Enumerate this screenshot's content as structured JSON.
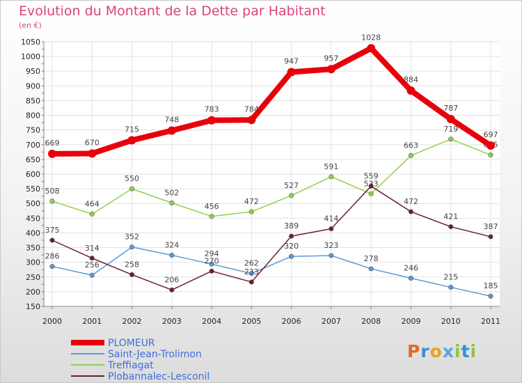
{
  "title": "Evolution du Montant de la Dette par Habitant",
  "unit": "(en €)",
  "logo": "Proxiti",
  "chart_data": {
    "type": "line",
    "title": "Evolution du Montant de la Dette par Habitant",
    "ylabel": "(en €)",
    "xlabel": "",
    "ylim": [
      150,
      1050
    ],
    "yticks": [
      150,
      200,
      250,
      300,
      350,
      400,
      450,
      500,
      550,
      600,
      650,
      700,
      750,
      800,
      850,
      900,
      950,
      1000,
      1050
    ],
    "grid": true,
    "legend": "bottom-left",
    "categories": [
      "2000",
      "2001",
      "2002",
      "2003",
      "2004",
      "2005",
      "2006",
      "2007",
      "2008",
      "2009",
      "2010",
      "2011"
    ],
    "series": [
      {
        "name": "PLOMEUR",
        "color": "#e8000b",
        "values": [
          669,
          670,
          715,
          748,
          783,
          784,
          947,
          957,
          1028,
          884,
          787,
          697
        ]
      },
      {
        "name": "Saint-Jean-Trolimon",
        "color": "#5b9bd5",
        "values": [
          286,
          256,
          352,
          324,
          294,
          262,
          320,
          323,
          278,
          246,
          215,
          185
        ]
      },
      {
        "name": "Treffiagat",
        "color": "#8fd14f",
        "values": [
          508,
          464,
          550,
          502,
          456,
          472,
          527,
          591,
          533,
          663,
          719,
          665
        ]
      },
      {
        "name": "Plobannalec-Lesconil",
        "color": "#6b1f26",
        "values": [
          375,
          314,
          258,
          206,
          270,
          233,
          389,
          414,
          559,
          472,
          421,
          387
        ]
      }
    ]
  }
}
